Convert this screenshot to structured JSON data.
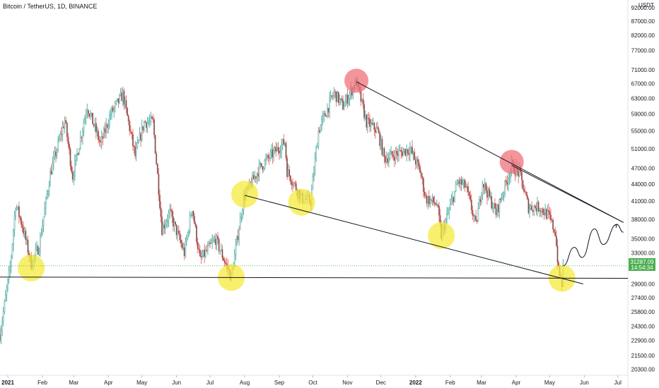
{
  "header": {
    "title": "Bitcoin / TetherUS, 1D, BINANCE",
    "currency": "USDT"
  },
  "price_badge": {
    "price": "31287.09",
    "countdown": "14:54:34"
  },
  "colors": {
    "up": "#26a69a",
    "down": "#ef5350",
    "wick": "#8a8a8a",
    "body_up": "#d8d8d8",
    "body_down": "#5a5a5a",
    "highlight_low": "#f5ea3c",
    "highlight_high": "#f0707a",
    "line": "#131722",
    "badge": "#4caf50"
  },
  "chart_data": {
    "type": "candlestick",
    "title": "Bitcoin / TetherUS, 1D, BINANCE",
    "y_scale": "log",
    "ylim": [
      19800,
      95000
    ],
    "y_ticks": [
      20300,
      21500,
      22900,
      24300,
      25800,
      27400,
      29000,
      31000,
      33000,
      35000,
      38000,
      41000,
      44000,
      47000,
      51000,
      55000,
      59000,
      63000,
      67000,
      71000,
      77000,
      82000,
      87000,
      92000
    ],
    "x_ticks": [
      {
        "label": "2021",
        "date": "2021-01-01",
        "bold": true
      },
      {
        "label": "Feb",
        "date": "2021-02-01"
      },
      {
        "label": "Mar",
        "date": "2021-03-01"
      },
      {
        "label": "Apr",
        "date": "2021-04-01"
      },
      {
        "label": "May",
        "date": "2021-05-01"
      },
      {
        "label": "Jun",
        "date": "2021-06-01"
      },
      {
        "label": "Jul",
        "date": "2021-07-01"
      },
      {
        "label": "Aug",
        "date": "2021-08-01"
      },
      {
        "label": "Sep",
        "date": "2021-09-01"
      },
      {
        "label": "Oct",
        "date": "2021-10-01"
      },
      {
        "label": "Nov",
        "date": "2021-11-01"
      },
      {
        "label": "Dec",
        "date": "2021-12-01"
      },
      {
        "label": "2022",
        "date": "2022-01-01",
        "bold": true
      },
      {
        "label": "Feb",
        "date": "2022-02-01"
      },
      {
        "label": "Mar",
        "date": "2022-03-01"
      },
      {
        "label": "Apr",
        "date": "2022-04-01"
      },
      {
        "label": "May",
        "date": "2022-05-01"
      },
      {
        "label": "Jun",
        "date": "2022-06-01"
      },
      {
        "label": "Jul",
        "date": "2022-07-01"
      }
    ],
    "xlim": [
      "2020-12-25",
      "2022-07-10"
    ],
    "price_path": [
      [
        "2020-12-25",
        23500
      ],
      [
        "2021-01-03",
        31000
      ],
      [
        "2021-01-08",
        40500
      ],
      [
        "2021-01-14",
        37000
      ],
      [
        "2021-01-22",
        31500
      ],
      [
        "2021-01-29",
        34000
      ],
      [
        "2021-02-08",
        46000
      ],
      [
        "2021-02-21",
        57500
      ],
      [
        "2021-02-28",
        45500
      ],
      [
        "2021-03-13",
        61000
      ],
      [
        "2021-03-25",
        52000
      ],
      [
        "2021-04-03",
        59000
      ],
      [
        "2021-04-14",
        64000
      ],
      [
        "2021-04-25",
        49500
      ],
      [
        "2021-05-03",
        57000
      ],
      [
        "2021-05-11",
        57000
      ],
      [
        "2021-05-19",
        36500
      ],
      [
        "2021-05-26",
        39000
      ],
      [
        "2021-06-08",
        33000
      ],
      [
        "2021-06-15",
        40000
      ],
      [
        "2021-06-22",
        32000
      ],
      [
        "2021-07-06",
        35000
      ],
      [
        "2021-07-20",
        29800
      ],
      [
        "2021-07-31",
        41500
      ],
      [
        "2021-08-14",
        47000
      ],
      [
        "2021-08-22",
        49000
      ],
      [
        "2021-09-06",
        52500
      ],
      [
        "2021-09-08",
        46500
      ],
      [
        "2021-09-21",
        41500
      ],
      [
        "2021-09-29",
        41000
      ],
      [
        "2021-10-06",
        55000
      ],
      [
        "2021-10-20",
        64500
      ],
      [
        "2021-10-28",
        61000
      ],
      [
        "2021-11-09",
        67500
      ],
      [
        "2021-11-18",
        57000
      ],
      [
        "2021-11-28",
        55000
      ],
      [
        "2021-12-04",
        49000
      ],
      [
        "2021-12-27",
        51000
      ],
      [
        "2022-01-05",
        46500
      ],
      [
        "2022-01-10",
        41500
      ],
      [
        "2022-01-20",
        40500
      ],
      [
        "2022-01-24",
        35500
      ],
      [
        "2022-02-08",
        44500
      ],
      [
        "2022-02-15",
        43500
      ],
      [
        "2022-02-24",
        37000
      ],
      [
        "2022-03-02",
        44500
      ],
      [
        "2022-03-14",
        39000
      ],
      [
        "2022-03-28",
        47500
      ],
      [
        "2022-04-04",
        46000
      ],
      [
        "2022-04-12",
        40000
      ],
      [
        "2022-04-22",
        40000
      ],
      [
        "2022-04-30",
        38500
      ],
      [
        "2022-05-06",
        36000
      ],
      [
        "2022-05-09",
        30500
      ],
      [
        "2022-05-12",
        29000
      ],
      [
        "2022-05-13",
        31287
      ]
    ],
    "annotations": {
      "lines": [
        {
          "from": [
            "2020-12-25",
            29850
          ],
          "to": [
            "2022-07-10",
            29700
          ]
        },
        {
          "from": [
            "2021-08-01",
            42000
          ],
          "to": [
            "2022-05-31",
            29000
          ]
        },
        {
          "from": [
            "2021-11-09",
            67500
          ],
          "to": [
            "2022-07-06",
            37500
          ]
        },
        {
          "from": [
            "2022-03-28",
            47600
          ],
          "to": [
            "2022-07-06",
            37500
          ]
        }
      ],
      "highlights_low": [
        {
          "date": "2021-01-22",
          "price": 31000
        },
        {
          "date": "2021-07-20",
          "price": 29800
        },
        {
          "date": "2021-08-01",
          "price": 42200
        },
        {
          "date": "2021-09-21",
          "price": 40800
        },
        {
          "date": "2022-01-24",
          "price": 35500
        },
        {
          "date": "2022-05-12",
          "price": 29700
        }
      ],
      "highlights_high": [
        {
          "date": "2021-11-09",
          "price": 67800
        },
        {
          "date": "2022-03-28",
          "price": 48300
        }
      ],
      "projection": [
        [
          "2022-05-13",
          31287
        ],
        [
          "2022-05-23",
          33800
        ],
        [
          "2022-05-30",
          32400
        ],
        [
          "2022-06-10",
          36500
        ],
        [
          "2022-06-18",
          34200
        ],
        [
          "2022-06-30",
          37200
        ],
        [
          "2022-07-06",
          36000
        ]
      ],
      "last_price_level": 31287
    }
  }
}
